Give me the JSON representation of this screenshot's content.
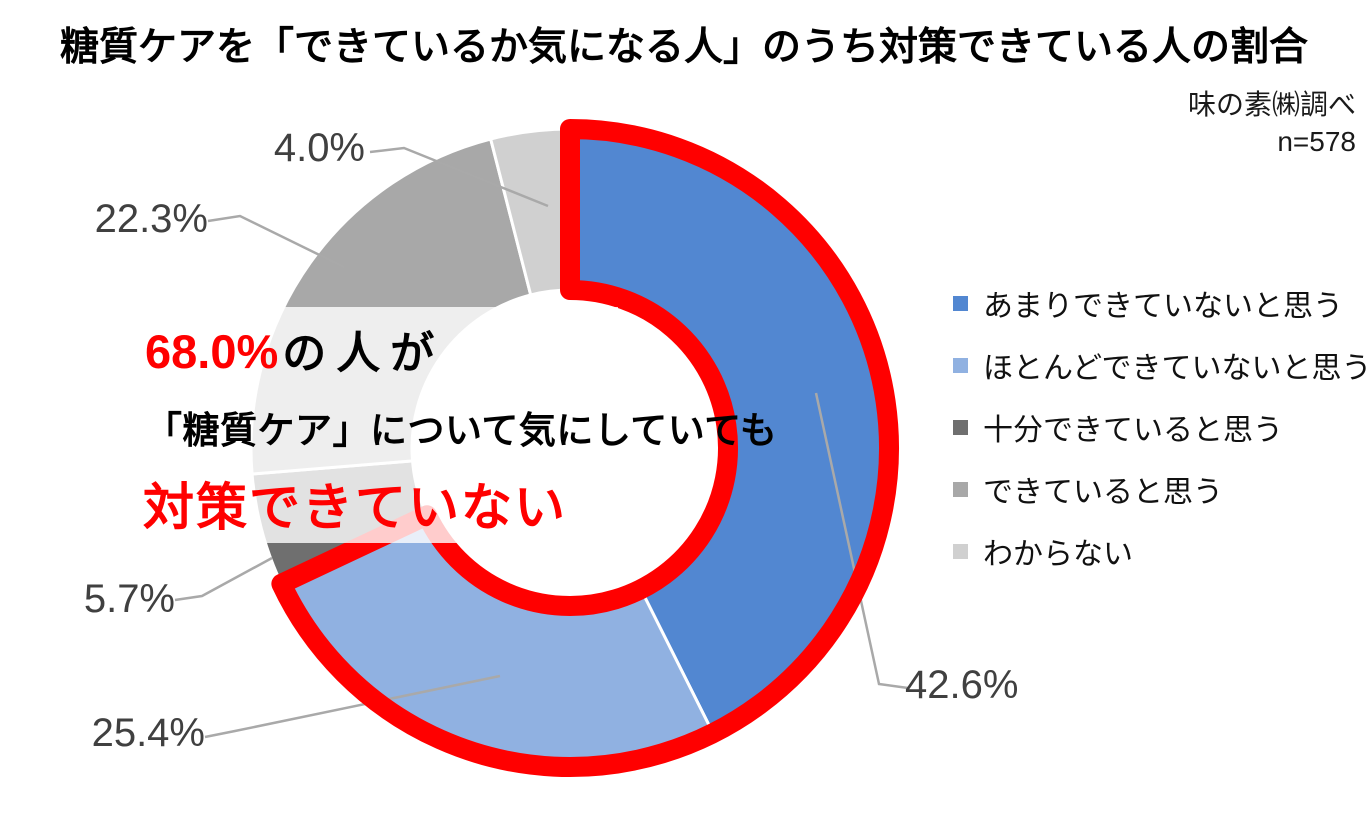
{
  "title": "糖質ケアを「できているか気になる人」のうち対策できている人の割合",
  "source": {
    "line1": "味の素㈱調べ",
    "line2": "n=578"
  },
  "chart_data": {
    "type": "pie",
    "subtype": "donut",
    "title": "糖質ケアを「できているか気になる人」のうち対策できている人の割合",
    "unit": "%",
    "sample_size_label": "n=578",
    "start_angle_deg": 0,
    "direction": "clockwise",
    "legend_position": "right",
    "series": [
      {
        "name": "あまりできていないと思う",
        "value": 42.6,
        "label": "42.6%",
        "color": "#5287d1"
      },
      {
        "name": "ほとんどできていないと思う",
        "value": 25.4,
        "label": "25.4%",
        "color": "#90b1e1"
      },
      {
        "name": "十分できていると思う",
        "value": 5.7,
        "label": "5.7%",
        "color": "#6f6f6f"
      },
      {
        "name": "できていると思う",
        "value": 22.3,
        "label": "22.3%",
        "color": "#a8a8a8"
      },
      {
        "name": "わからない",
        "value": 4.0,
        "label": "4.0%",
        "color": "#d0d0d0"
      }
    ],
    "highlight": {
      "value": 68.0,
      "label": "68.0%",
      "color": "#ff0000",
      "covers": [
        "あまりできていないと思う",
        "ほとんどできていないと思う"
      ]
    }
  },
  "annotation": {
    "headline_pct": "68.0%",
    "headline_rest": "の人が",
    "line2": "「糖質ケア」について気にしていても",
    "line3": "対策できていない"
  },
  "colors": {
    "leader_line": "#a9a9a9",
    "callout_text": "#404040",
    "slice_gap": "#ffffff"
  }
}
